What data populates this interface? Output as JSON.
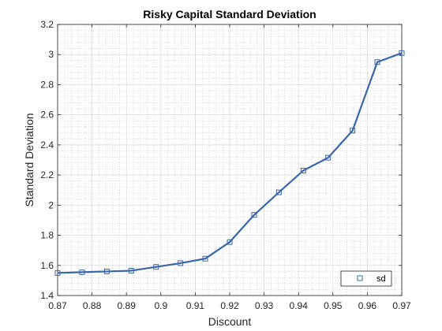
{
  "chart_data": {
    "type": "line",
    "title": "Risky Capital Standard Deviation",
    "xlabel": "Discount",
    "ylabel": "Standard Deviation",
    "xlim": [
      0.87,
      0.97
    ],
    "ylim": [
      1.4,
      3.2
    ],
    "xticks": [
      0.87,
      0.88,
      0.89,
      0.9,
      0.91,
      0.92,
      0.93,
      0.94,
      0.95,
      0.96,
      0.97
    ],
    "xtick_labels": [
      "0.87",
      "0.88",
      "0.89",
      "0.9",
      "0.91",
      "0.92",
      "0.93",
      "0.94",
      "0.95",
      "0.96",
      "0.97"
    ],
    "yticks": [
      1.4,
      1.6,
      1.8,
      2.0,
      2.2,
      2.4,
      2.6,
      2.8,
      3.0,
      3.2
    ],
    "ytick_labels": [
      "1.4",
      "1.6",
      "1.8",
      "2",
      "2.2",
      "2.4",
      "2.6",
      "2.8",
      "3",
      "3.2"
    ],
    "grid": true,
    "minor_grid": true,
    "legend_position": "bottom-right",
    "series": [
      {
        "name": "sd",
        "color": "#3a66ac",
        "marker": "square",
        "x": [
          0.87,
          0.8771,
          0.8843,
          0.8914,
          0.8986,
          0.9057,
          0.9129,
          0.92,
          0.9271,
          0.9343,
          0.9414,
          0.9486,
          0.9557,
          0.9629,
          0.97
        ],
        "y": [
          1.55,
          1.555,
          1.56,
          1.565,
          1.59,
          1.615,
          1.645,
          1.755,
          1.935,
          2.085,
          2.23,
          2.315,
          2.495,
          2.95,
          3.01
        ]
      }
    ]
  }
}
